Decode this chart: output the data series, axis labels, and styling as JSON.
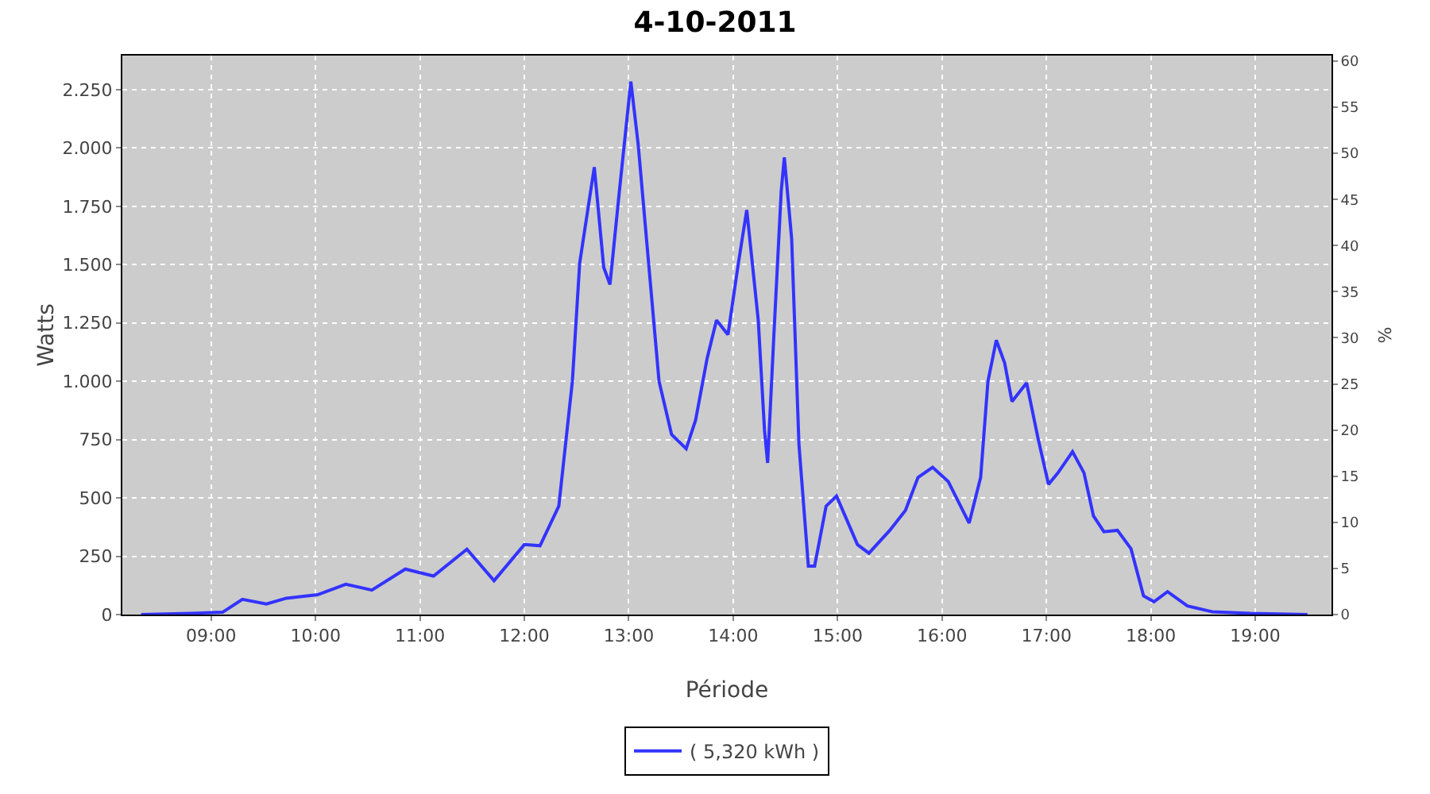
{
  "chart_data": {
    "type": "line",
    "title": "4-10-2011",
    "xlabel": "Période",
    "ylabel": "Watts",
    "y2label": "%",
    "x": [
      8.33,
      8.8,
      9.11,
      9.3,
      9.53,
      9.72,
      10.02,
      10.29,
      10.54,
      10.86,
      11.13,
      11.45,
      11.71,
      12.0,
      12.15,
      12.33,
      12.46,
      12.53,
      12.67,
      12.76,
      12.82,
      12.91,
      13.02,
      13.09,
      13.19,
      13.29,
      13.41,
      13.55,
      13.64,
      13.75,
      13.84,
      13.95,
      14.05,
      14.13,
      14.24,
      14.3,
      14.33,
      14.39,
      14.46,
      14.49,
      14.56,
      14.63,
      14.72,
      14.78,
      14.89,
      14.99,
      15.19,
      15.3,
      15.5,
      15.65,
      15.77,
      15.91,
      16.06,
      16.26,
      16.37,
      16.44,
      16.52,
      16.6,
      16.67,
      16.81,
      16.92,
      17.02,
      17.11,
      17.25,
      17.36,
      17.45,
      17.55,
      17.68,
      17.81,
      17.93,
      18.03,
      18.16,
      18.35,
      18.59,
      18.95,
      19.5
    ],
    "series": [
      {
        "name": "( 5,320 kWh )",
        "color": "#3333ff",
        "values": [
          0,
          5,
          10,
          65,
          45,
          70,
          85,
          130,
          105,
          195,
          165,
          280,
          145,
          300,
          295,
          465,
          1000,
          1507,
          1918,
          1489,
          1415,
          1814,
          2285,
          2016,
          1507,
          1000,
          772,
          711,
          833,
          1097,
          1262,
          1200,
          1507,
          1734,
          1262,
          790,
          650,
          1200,
          1814,
          1960,
          1611,
          729,
          208,
          208,
          465,
          508,
          300,
          263,
          361,
          447,
          588,
          631,
          570,
          392,
          588,
          1000,
          1176,
          1078,
          913,
          993,
          754,
          558,
          607,
          698,
          607,
          423,
          355,
          361,
          282,
          80,
          55,
          98,
          37,
          12,
          5,
          0
        ]
      }
    ],
    "xlim": [
      8.15,
      19.73
    ],
    "xticks": [
      {
        "value": 9,
        "label": "09:00"
      },
      {
        "value": 10,
        "label": "10:00"
      },
      {
        "value": 11,
        "label": "11:00"
      },
      {
        "value": 12,
        "label": "12:00"
      },
      {
        "value": 13,
        "label": "13:00"
      },
      {
        "value": 14,
        "label": "14:00"
      },
      {
        "value": 15,
        "label": "15:00"
      },
      {
        "value": 16,
        "label": "16:00"
      },
      {
        "value": 17,
        "label": "17:00"
      },
      {
        "value": 18,
        "label": "18:00"
      },
      {
        "value": 19,
        "label": "19:00"
      }
    ],
    "ylim": [
      0,
      2396
    ],
    "yticks": [
      0,
      250,
      500,
      750,
      {
        "value": 1000,
        "label": "1.000"
      },
      {
        "value": 1250,
        "label": "1.250"
      },
      {
        "value": 1500,
        "label": "1.500"
      },
      {
        "value": 1750,
        "label": "1.750"
      },
      {
        "value": 2000,
        "label": "2.000"
      },
      {
        "value": 2250,
        "label": "2.250"
      }
    ],
    "y2lim": [
      0,
      60.6
    ],
    "y2ticks": [
      0,
      5,
      10,
      15,
      20,
      25,
      30,
      35,
      40,
      45,
      50,
      55,
      60
    ],
    "grid": true,
    "legend": "bottom",
    "marker": "none",
    "line_style": "solid"
  }
}
